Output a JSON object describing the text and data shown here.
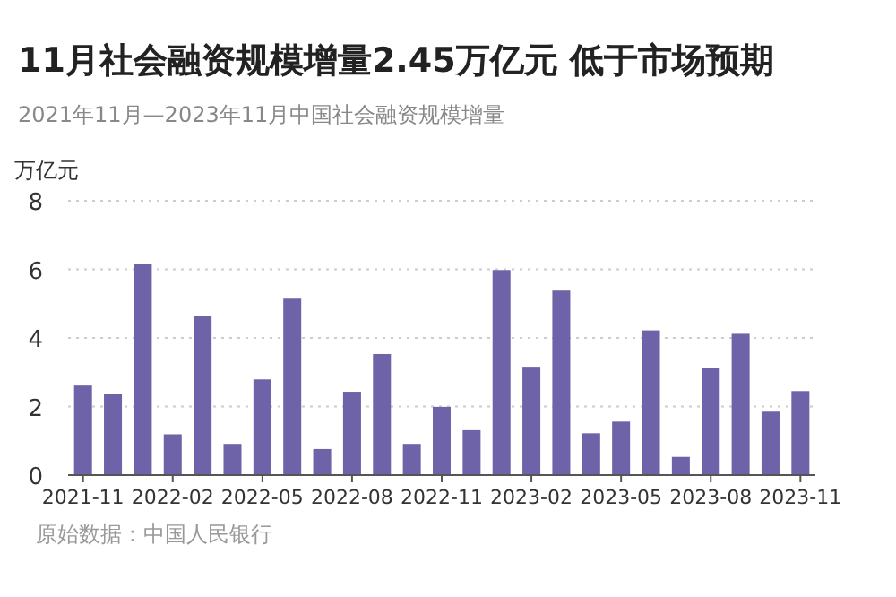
{
  "chart_data": {
    "type": "bar",
    "title": "11月社会融资规模增量2.45万亿元 低于市场预期",
    "subtitle": "2021年11月—2023年11月中国社会融资规模增量",
    "ylabel": "万亿元",
    "categories": [
      "2021-11",
      null,
      null,
      "2022-02",
      null,
      null,
      "2022-05",
      null,
      null,
      "2022-08",
      null,
      null,
      "2022-11",
      null,
      null,
      "2023-02",
      null,
      null,
      "2023-05",
      null,
      null,
      "2023-08",
      null,
      null,
      "2023-11"
    ],
    "values": [
      2.61,
      2.37,
      6.17,
      1.19,
      4.65,
      0.91,
      2.79,
      5.17,
      0.76,
      2.43,
      3.53,
      0.91,
      1.99,
      1.31,
      5.98,
      3.16,
      5.38,
      1.22,
      1.56,
      4.22,
      0.53,
      3.12,
      4.12,
      1.85,
      2.45
    ],
    "color": "#6e62a8",
    "ylim": [
      0,
      8
    ],
    "yticks": [
      0,
      2,
      4,
      6,
      8
    ],
    "grid": "y",
    "annotations": [
      "原始数据：中国人民银行"
    ]
  }
}
